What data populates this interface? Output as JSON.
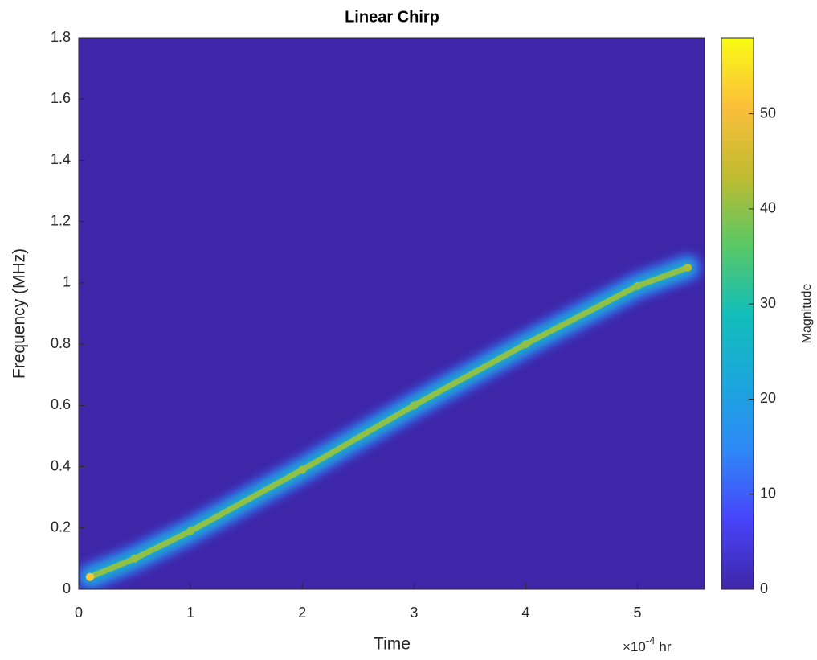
{
  "chart_data": {
    "type": "spectrogram",
    "title": "Linear Chirp",
    "xlabel": "Time",
    "ylabel": "Frequency (MHz)",
    "x_multiplier": "×10",
    "x_exponent": "-4",
    "x_unit": "hr",
    "colorbar_label": "Magnitude",
    "colormap": "parula",
    "x": [
      0.1,
      0.5,
      1,
      2,
      3,
      4,
      5,
      5.45
    ],
    "y": [
      0.04,
      0.1,
      0.19,
      0.39,
      0.6,
      0.8,
      0.99,
      1.05
    ],
    "values": [
      52,
      40,
      40,
      41,
      40,
      40,
      40,
      42
    ],
    "xlim": [
      0,
      5.6
    ],
    "xticks": [
      0,
      1,
      2,
      3,
      4,
      5
    ],
    "ylim": [
      0,
      1.8
    ],
    "yticks": [
      0,
      0.2,
      0.4,
      0.6,
      0.8,
      1,
      1.2,
      1.4,
      1.6,
      1.8
    ],
    "clim": [
      0,
      58
    ],
    "cticks": [
      0,
      10,
      20,
      30,
      40,
      50
    ]
  }
}
